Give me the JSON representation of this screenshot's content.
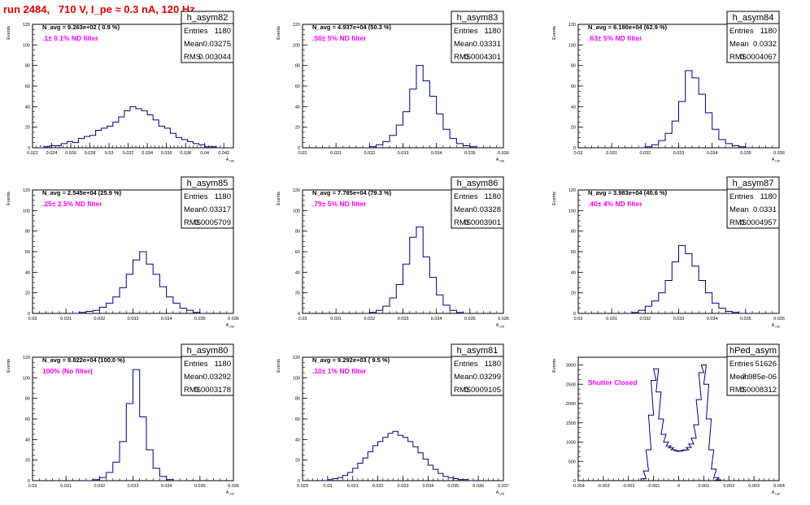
{
  "page_title": "run 2484,   710 V, I_pe ≈ 0.3 nA, 120 Hz",
  "colors": {
    "title": "#e00000",
    "annotation": "#ff00ff",
    "histogram_line": "#000080",
    "frame": "#000000"
  },
  "stats_labels": {
    "entries": "Entries",
    "mean": "Mean",
    "rms": "RMS"
  },
  "chart_data": [
    {
      "type": "histogram",
      "name": "h_asym82",
      "avg_label": "N_avg = 9.263e+02 ( 0.9 %)",
      "note": ".1± 0.1% ND filter",
      "ylabel": "Events",
      "xlabel": "A_UID",
      "entries": "1180",
      "mean": "0.03275",
      "rms": "0.003044",
      "xlim": [
        0.022,
        0.043
      ],
      "ylim": [
        0,
        120
      ],
      "xticks": [
        0.022,
        0.024,
        0.026,
        0.028,
        0.03,
        0.032,
        0.034,
        0.036,
        0.038,
        0.04,
        0.042
      ],
      "xtick_labels": [
        "0.022",
        "0.024",
        "0.026",
        "0.028",
        "0.03",
        "0.032",
        "0.034",
        "0.036",
        "0.038",
        "0.04",
        "0.042"
      ],
      "yticks": [
        0,
        20,
        40,
        60,
        80,
        100,
        120
      ],
      "bins": [
        [
          0.0226,
          0
        ],
        [
          0.0232,
          1
        ],
        [
          0.0238,
          2
        ],
        [
          0.0244,
          2
        ],
        [
          0.025,
          4
        ],
        [
          0.0256,
          6
        ],
        [
          0.0262,
          5
        ],
        [
          0.0268,
          9
        ],
        [
          0.0274,
          11
        ],
        [
          0.028,
          12
        ],
        [
          0.0286,
          17
        ],
        [
          0.0292,
          19
        ],
        [
          0.0298,
          21
        ],
        [
          0.0304,
          25
        ],
        [
          0.031,
          30
        ],
        [
          0.0316,
          36
        ],
        [
          0.0322,
          40
        ],
        [
          0.0328,
          38
        ],
        [
          0.0334,
          36
        ],
        [
          0.034,
          32
        ],
        [
          0.0346,
          27
        ],
        [
          0.0352,
          21
        ],
        [
          0.0358,
          19
        ],
        [
          0.0364,
          14
        ],
        [
          0.037,
          10
        ],
        [
          0.0376,
          8
        ],
        [
          0.0382,
          6
        ],
        [
          0.0388,
          4
        ],
        [
          0.0394,
          3
        ],
        [
          0.04,
          1
        ],
        [
          0.0406,
          1
        ],
        [
          0.0412,
          0
        ]
      ]
    },
    {
      "type": "histogram",
      "name": "h_asym83",
      "avg_label": "N_avg = 4.937e+04 (50.3 %)",
      "note": ".50± 5% ND filter",
      "ylabel": "Events",
      "xlabel": "A_UID",
      "entries": "1180",
      "mean": "0.03331",
      "rms": "0.0004301",
      "xlim": [
        0.03,
        0.036
      ],
      "ylim": [
        0,
        120
      ],
      "xticks": [
        0.03,
        0.031,
        0.032,
        0.033,
        0.034,
        0.035,
        0.036
      ],
      "xtick_labels": [
        "0.03",
        "0.031",
        "0.032",
        "0.033",
        "0.034",
        "0.035",
        "0.036"
      ],
      "yticks": [
        0,
        20,
        40,
        60,
        80,
        100,
        120
      ],
      "bins": [
        [
          0.0318,
          0
        ],
        [
          0.032,
          1
        ],
        [
          0.0322,
          3
        ],
        [
          0.0324,
          6
        ],
        [
          0.0326,
          12
        ],
        [
          0.0328,
          22
        ],
        [
          0.033,
          35
        ],
        [
          0.0332,
          57
        ],
        [
          0.0334,
          80
        ],
        [
          0.0336,
          65
        ],
        [
          0.0338,
          50
        ],
        [
          0.034,
          33
        ],
        [
          0.0342,
          18
        ],
        [
          0.0344,
          9
        ],
        [
          0.0346,
          4
        ],
        [
          0.0348,
          2
        ],
        [
          0.035,
          1
        ],
        [
          0.0352,
          0
        ]
      ]
    },
    {
      "type": "histogram",
      "name": "h_asym84",
      "avg_label": "N_avg = 6.180e+04 (62.9 %)",
      "note": ".63± 5% ND filter",
      "ylabel": "Events",
      "xlabel": "A_UID",
      "entries": "1180",
      "mean": "0.0332",
      "rms": "0.0004067",
      "xlim": [
        0.03,
        0.036
      ],
      "ylim": [
        0,
        120
      ],
      "xticks": [
        0.03,
        0.031,
        0.032,
        0.033,
        0.034,
        0.035,
        0.036
      ],
      "xtick_labels": [
        "0.03",
        "0.031",
        "0.032",
        "0.033",
        "0.034",
        "0.035",
        "0.036"
      ],
      "yticks": [
        0,
        20,
        40,
        60,
        80,
        100,
        120
      ],
      "bins": [
        [
          0.0318,
          0
        ],
        [
          0.032,
          1
        ],
        [
          0.0322,
          3
        ],
        [
          0.0324,
          7
        ],
        [
          0.0326,
          14
        ],
        [
          0.0328,
          26
        ],
        [
          0.033,
          45
        ],
        [
          0.0332,
          75
        ],
        [
          0.0334,
          68
        ],
        [
          0.0336,
          52
        ],
        [
          0.0338,
          34
        ],
        [
          0.034,
          18
        ],
        [
          0.0342,
          8
        ],
        [
          0.0344,
          4
        ],
        [
          0.0346,
          2
        ],
        [
          0.0348,
          1
        ],
        [
          0.035,
          0
        ]
      ]
    },
    {
      "type": "histogram",
      "name": "h_asym85",
      "avg_label": "N_avg = 2.545e+04 (25.9 %)",
      "note": ".25± 2.5% ND filter",
      "ylabel": "Events",
      "xlabel": "A_UID",
      "entries": "1180",
      "mean": "0.03317",
      "rms": "0.0005709",
      "xlim": [
        0.03,
        0.036
      ],
      "ylim": [
        0,
        120
      ],
      "xticks": [
        0.03,
        0.031,
        0.032,
        0.033,
        0.034,
        0.035,
        0.036
      ],
      "xtick_labels": [
        "0.03",
        "0.031",
        "0.032",
        "0.033",
        "0.034",
        "0.035",
        "0.036"
      ],
      "yticks": [
        0,
        20,
        40,
        60,
        80,
        100,
        120
      ],
      "bins": [
        [
          0.0312,
          0
        ],
        [
          0.0314,
          1
        ],
        [
          0.0316,
          2
        ],
        [
          0.0318,
          3
        ],
        [
          0.032,
          6
        ],
        [
          0.0322,
          10
        ],
        [
          0.0324,
          16
        ],
        [
          0.0326,
          25
        ],
        [
          0.0328,
          38
        ],
        [
          0.033,
          52
        ],
        [
          0.0332,
          60
        ],
        [
          0.0334,
          48
        ],
        [
          0.0336,
          38
        ],
        [
          0.0338,
          26
        ],
        [
          0.034,
          16
        ],
        [
          0.0342,
          10
        ],
        [
          0.0344,
          5
        ],
        [
          0.0346,
          3
        ],
        [
          0.0348,
          1
        ],
        [
          0.035,
          0
        ]
      ]
    },
    {
      "type": "histogram",
      "name": "h_asym86",
      "avg_label": "N_avg = 7.785e+04 (79.3 %)",
      "note": ".79± 5% ND filter",
      "ylabel": "Events",
      "xlabel": "A_UID",
      "entries": "1180",
      "mean": "0.03328",
      "rms": "0.0003901",
      "xlim": [
        0.03,
        0.036
      ],
      "ylim": [
        0,
        120
      ],
      "xticks": [
        0.03,
        0.031,
        0.032,
        0.033,
        0.034,
        0.035,
        0.036
      ],
      "xtick_labels": [
        "0.03",
        "0.031",
        "0.032",
        "0.033",
        "0.034",
        "0.035",
        "0.036"
      ],
      "yticks": [
        0,
        20,
        40,
        60,
        80,
        100,
        120
      ],
      "bins": [
        [
          0.0318,
          0
        ],
        [
          0.032,
          1
        ],
        [
          0.0322,
          3
        ],
        [
          0.0324,
          7
        ],
        [
          0.0326,
          15
        ],
        [
          0.0328,
          28
        ],
        [
          0.033,
          48
        ],
        [
          0.0332,
          74
        ],
        [
          0.0334,
          84
        ],
        [
          0.0336,
          55
        ],
        [
          0.0338,
          35
        ],
        [
          0.034,
          18
        ],
        [
          0.0342,
          8
        ],
        [
          0.0344,
          3
        ],
        [
          0.0346,
          1
        ],
        [
          0.0348,
          0
        ]
      ]
    },
    {
      "type": "histogram",
      "name": "h_asym87",
      "avg_label": "N_avg = 3.983e+04 (40.6 %)",
      "note": ".40± 4% ND filter",
      "ylabel": "Events",
      "xlabel": "A_UID",
      "entries": "1180",
      "mean": "0.0331",
      "rms": "0.0004957",
      "xlim": [
        0.03,
        0.036
      ],
      "ylim": [
        0,
        120
      ],
      "xticks": [
        0.03,
        0.031,
        0.032,
        0.033,
        0.034,
        0.035,
        0.036
      ],
      "xtick_labels": [
        "0.03",
        "0.031",
        "0.032",
        "0.033",
        "0.034",
        "0.035",
        "0.036"
      ],
      "yticks": [
        0,
        20,
        40,
        60,
        80,
        100,
        120
      ],
      "bins": [
        [
          0.0314,
          0
        ],
        [
          0.0316,
          1
        ],
        [
          0.0318,
          3
        ],
        [
          0.032,
          7
        ],
        [
          0.0322,
          12
        ],
        [
          0.0324,
          20
        ],
        [
          0.0326,
          32
        ],
        [
          0.0328,
          50
        ],
        [
          0.033,
          66
        ],
        [
          0.0332,
          58
        ],
        [
          0.0334,
          46
        ],
        [
          0.0336,
          32
        ],
        [
          0.0338,
          20
        ],
        [
          0.034,
          10
        ],
        [
          0.0342,
          5
        ],
        [
          0.0344,
          2
        ],
        [
          0.0346,
          1
        ],
        [
          0.0348,
          0
        ]
      ]
    },
    {
      "type": "histogram",
      "name": "h_asym80",
      "avg_label": "N_avg = 9.822e+04 (100.0 %)",
      "note": "100% (No filter)",
      "ylabel": "Events",
      "xlabel": "A_UID",
      "entries": "1180",
      "mean": "0.03292",
      "rms": "0.0003178",
      "xlim": [
        0.03,
        0.036
      ],
      "ylim": [
        0,
        120
      ],
      "xticks": [
        0.03,
        0.031,
        0.032,
        0.033,
        0.034,
        0.035,
        0.036
      ],
      "xtick_labels": [
        "0.03",
        "0.031",
        "0.032",
        "0.033",
        "0.034",
        "0.035",
        "0.036"
      ],
      "yticks": [
        0,
        20,
        40,
        60,
        80,
        100,
        120
      ],
      "bins": [
        [
          0.0316,
          0
        ],
        [
          0.0318,
          1
        ],
        [
          0.032,
          3
        ],
        [
          0.0322,
          8
        ],
        [
          0.0324,
          18
        ],
        [
          0.0326,
          38
        ],
        [
          0.0328,
          75
        ],
        [
          0.033,
          108
        ],
        [
          0.0332,
          62
        ],
        [
          0.0334,
          30
        ],
        [
          0.0336,
          12
        ],
        [
          0.0338,
          4
        ],
        [
          0.034,
          1
        ],
        [
          0.0342,
          0
        ]
      ]
    },
    {
      "type": "histogram",
      "name": "h_asym81",
      "avg_label": "N_avg = 9.292e+03 ( 9.5 %)",
      "note": ".10± 1% ND filter",
      "ylabel": "Events",
      "xlabel": "A_UID",
      "entries": "1180",
      "mean": "0.03299",
      "rms": "0.0009105",
      "xlim": [
        0.029,
        0.037
      ],
      "ylim": [
        0,
        120
      ],
      "xticks": [
        0.029,
        0.03,
        0.031,
        0.032,
        0.033,
        0.034,
        0.035,
        0.036,
        0.037
      ],
      "xtick_labels": [
        "0.029",
        "0.03",
        "0.031",
        "0.032",
        "0.033",
        "0.034",
        "0.035",
        "0.036",
        "0.037"
      ],
      "yticks": [
        0,
        20,
        40,
        60,
        80,
        100,
        120
      ],
      "bins": [
        [
          0.0298,
          0
        ],
        [
          0.03,
          1
        ],
        [
          0.0302,
          2
        ],
        [
          0.0304,
          3
        ],
        [
          0.0306,
          5
        ],
        [
          0.0308,
          8
        ],
        [
          0.031,
          12
        ],
        [
          0.0312,
          17
        ],
        [
          0.0314,
          22
        ],
        [
          0.0316,
          28
        ],
        [
          0.0318,
          34
        ],
        [
          0.032,
          38
        ],
        [
          0.0322,
          42
        ],
        [
          0.0324,
          46
        ],
        [
          0.0326,
          48
        ],
        [
          0.0328,
          44
        ],
        [
          0.033,
          42
        ],
        [
          0.0332,
          38
        ],
        [
          0.0334,
          33
        ],
        [
          0.0336,
          27
        ],
        [
          0.0338,
          21
        ],
        [
          0.034,
          15
        ],
        [
          0.0342,
          11
        ],
        [
          0.0344,
          7
        ],
        [
          0.0346,
          4
        ],
        [
          0.0348,
          3
        ],
        [
          0.035,
          2
        ],
        [
          0.0352,
          1
        ],
        [
          0.0354,
          1
        ],
        [
          0.0356,
          0
        ]
      ]
    },
    {
      "type": "histogram",
      "name": "hPed_asym",
      "avg_label": "",
      "note": "Shutter Closed",
      "ylabel": "Events",
      "xlabel": "A_UID",
      "entries": "51626",
      "mean": "-7.985e-06",
      "rms": "0.0008312",
      "xlim": [
        -0.004,
        0.004
      ],
      "ylim": [
        0,
        3200
      ],
      "xticks": [
        -0.004,
        -0.003,
        -0.002,
        -0.001,
        0,
        0.001,
        0.002,
        0.003,
        0.004
      ],
      "xtick_labels": [
        "-0.004",
        "-0.003",
        "-0.002",
        "-0.001",
        "0",
        "0.001",
        "0.002",
        "0.003",
        "0.004"
      ],
      "yticks": [
        0,
        500,
        1000,
        1500,
        2000,
        2500,
        3000
      ],
      "bins": [
        [
          -0.0017,
          0
        ],
        [
          -0.0015,
          50
        ],
        [
          -0.0014,
          250
        ],
        [
          -0.0013,
          800
        ],
        [
          -0.0012,
          1700
        ],
        [
          -0.0011,
          2600
        ],
        [
          -0.001,
          2900
        ],
        [
          -0.0009,
          2300
        ],
        [
          -0.0008,
          1600
        ],
        [
          -0.0007,
          1200
        ],
        [
          -0.0006,
          1000
        ],
        [
          -0.0005,
          900
        ],
        [
          -0.0004,
          850
        ],
        [
          -0.0003,
          800
        ],
        [
          -0.0002,
          780
        ],
        [
          -0.0001,
          760
        ],
        [
          0,
          770
        ],
        [
          0.0001,
          790
        ],
        [
          0.0002,
          800
        ],
        [
          0.0003,
          860
        ],
        [
          0.0004,
          950
        ],
        [
          0.0005,
          1100
        ],
        [
          0.0006,
          1450
        ],
        [
          0.0007,
          2100
        ],
        [
          0.0008,
          2800
        ],
        [
          0.0009,
          3000
        ],
        [
          0.001,
          2500
        ],
        [
          0.0011,
          1600
        ],
        [
          0.0012,
          800
        ],
        [
          0.0013,
          300
        ],
        [
          0.0014,
          80
        ],
        [
          0.0015,
          20
        ],
        [
          0.0016,
          0
        ]
      ]
    }
  ]
}
